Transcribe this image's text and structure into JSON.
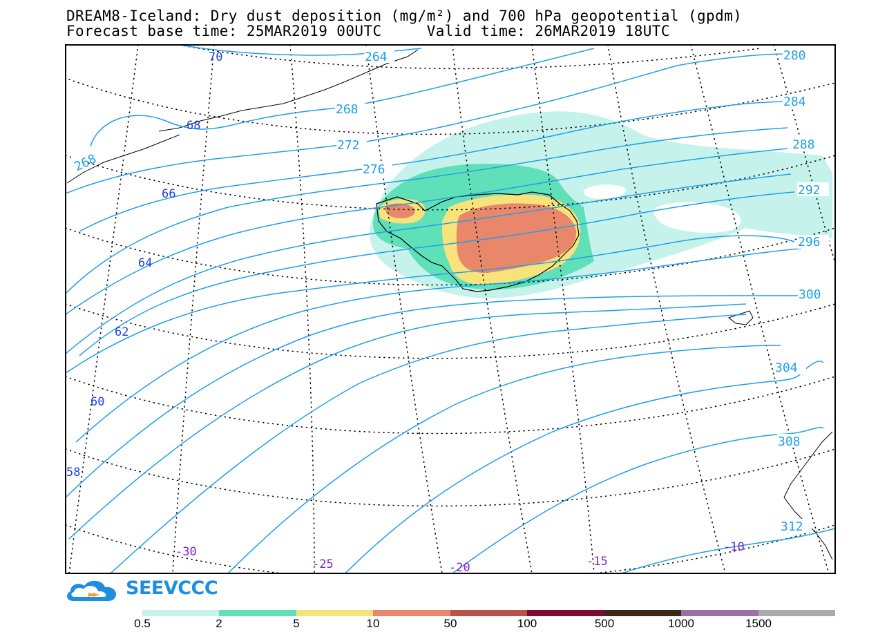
{
  "header": {
    "title_line1": "DREAM8-Iceland: Dry dust deposition (mg/m²) and 700 hPa geopotential (gpdm)",
    "title_line2": "Forecast base time: 25MAR2019 00UTC     Valid time: 26MAR2019 18UTC"
  },
  "map": {
    "contour_labels": [
      "264",
      "268",
      "268",
      "272",
      "276",
      "280",
      "284",
      "288",
      "292",
      "296",
      "300",
      "304",
      "308",
      "312"
    ],
    "latitude_labels": [
      "70",
      "68",
      "66",
      "64",
      "62",
      "60",
      "58"
    ],
    "longitude_labels": [
      "-30",
      "-25",
      "-20",
      "-15",
      "-10"
    ],
    "contour_color": "#1da0e8",
    "lat_label_color": "#1c3fe0",
    "lon_label_color": "#8a1fd0"
  },
  "logo": {
    "text": "SEEVCCC",
    "color": "#1e8fe0"
  },
  "legend": {
    "labels": [
      "0.5",
      "2",
      "5",
      "10",
      "50",
      "100",
      "500",
      "1000",
      "1500"
    ],
    "colors": [
      "#c6f2ec",
      "#5fe0b8",
      "#f7e37a",
      "#e8876a",
      "#b5544a",
      "#7a0c2e",
      "#3a2a1c",
      "#9a6fa6",
      "#ababab"
    ]
  }
}
